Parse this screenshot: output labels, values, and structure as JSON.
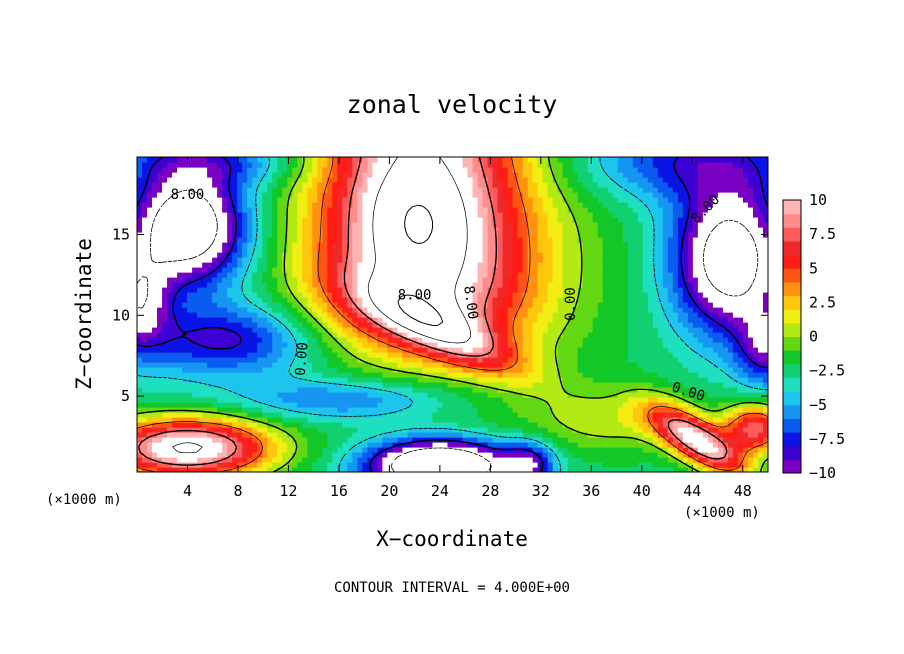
{
  "chart_data": {
    "type": "heatmap",
    "title": "zonal velocity",
    "xlabel": "X−coordinate",
    "ylabel": "Z−coordinate",
    "x_unit_left": "(×1000 m)",
    "x_unit_right": "(×1000 m)",
    "footer": "CONTOUR INTERVAL = 4.000E+00",
    "xlim": [
      0,
      50
    ],
    "ylim": [
      0.3,
      19.8
    ],
    "x_ticks": [
      4,
      8,
      12,
      16,
      20,
      24,
      28,
      32,
      36,
      40,
      44,
      48
    ],
    "y_ticks": [
      5,
      10,
      15
    ],
    "colorbar": {
      "range": [
        -10,
        10
      ],
      "tick_values": [
        10,
        7.5,
        5,
        2.5,
        0,
        -2.5,
        -5,
        -7.5,
        -10
      ],
      "tick_labels": [
        "10",
        "7.5",
        "5",
        "2.5",
        "0",
        "−2.5",
        "−5",
        "−7.5",
        "−10"
      ],
      "colors": [
        "#7a00c4",
        "#3c00d2",
        "#0a14e6",
        "#0a5cf0",
        "#1696f2",
        "#1cc4ee",
        "#1ee0c0",
        "#10d070",
        "#12c828",
        "#62d812",
        "#b4ea14",
        "#f2ee12",
        "#ffc60e",
        "#ff9010",
        "#ff5414",
        "#ff1c14",
        "#f02828",
        "#ff5a5a",
        "#ff8c8c",
        "#ffb4b4"
      ]
    },
    "contour_labels": [
      {
        "text": "8.00",
        "x": 4.0,
        "y": 17.5,
        "rot": 0
      },
      {
        "text": "8.00",
        "x": 22.0,
        "y": 11.3,
        "rot": 0
      },
      {
        "text": "8.00",
        "x": 26.5,
        "y": 10.8,
        "rot": 82
      },
      {
        "text": "0.00",
        "x": 13.0,
        "y": 7.3,
        "rot": -85
      },
      {
        "text": "0.00",
        "x": 34.3,
        "y": 10.7,
        "rot": -90
      },
      {
        "text": "0.00",
        "x": 43.7,
        "y": 5.3,
        "rot": 18
      },
      {
        "text": "8.00",
        "x": 45.0,
        "y": 16.6,
        "rot": -45
      }
    ]
  }
}
